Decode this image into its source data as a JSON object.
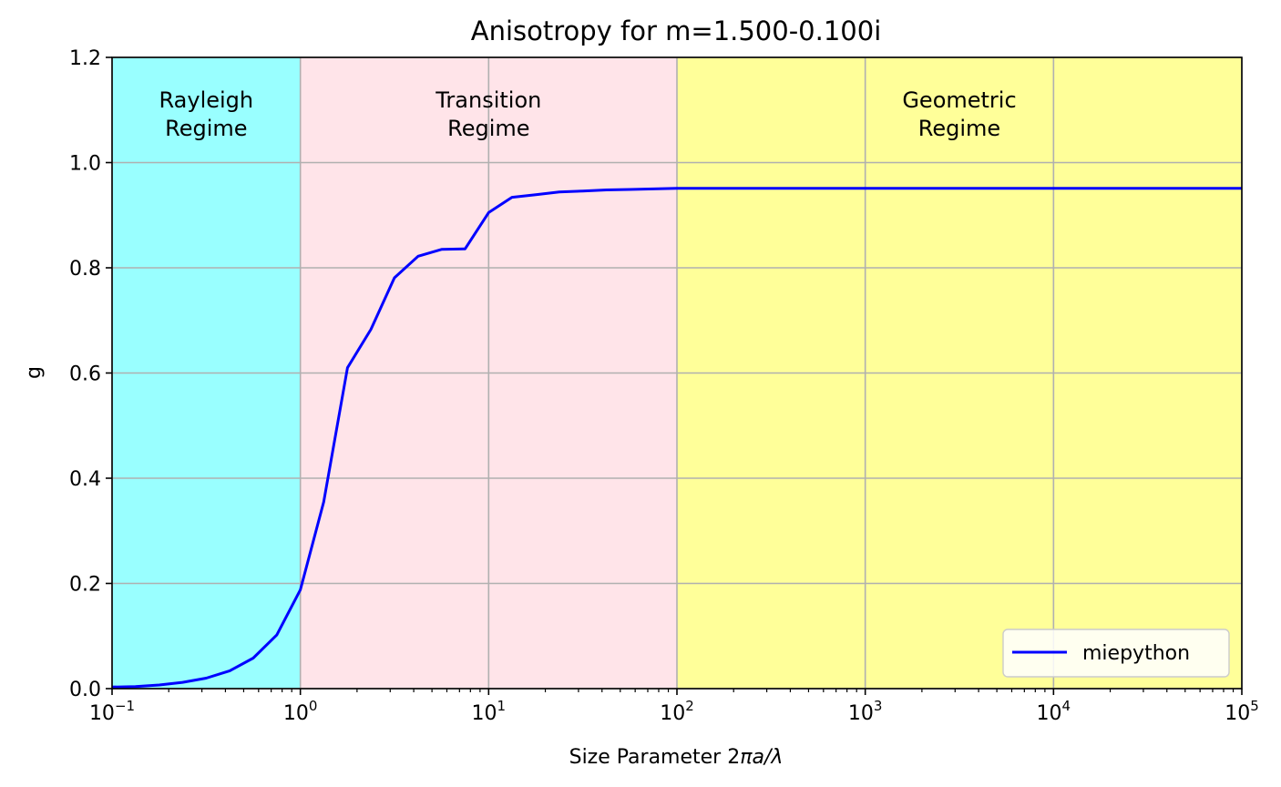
{
  "chart_data": {
    "type": "line",
    "title": "Anisotropy for m=1.500-0.100i",
    "xlabel_prefix": "Size Parameter 2",
    "xlabel_math": "πa/λ",
    "ylabel": "g",
    "xscale": "log",
    "xlim": [
      0.1,
      100000
    ],
    "ylim": [
      0,
      1.2
    ],
    "grid": true,
    "legend_position": "lower right",
    "x_ticks": [
      {
        "base": "10",
        "exp": "−1"
      },
      {
        "base": "10",
        "exp": "0"
      },
      {
        "base": "10",
        "exp": "1"
      },
      {
        "base": "10",
        "exp": "2"
      },
      {
        "base": "10",
        "exp": "3"
      },
      {
        "base": "10",
        "exp": "4"
      },
      {
        "base": "10",
        "exp": "5"
      }
    ],
    "y_ticks": [
      "0.0",
      "0.2",
      "0.4",
      "0.6",
      "0.8",
      "1.0",
      "1.2"
    ],
    "regions": [
      {
        "name": "rayleigh",
        "line1": "Rayleigh",
        "line2": "Regime",
        "from": 0.1,
        "to": 1,
        "color": "#99ffff"
      },
      {
        "name": "transition",
        "line1": "Transition",
        "line2": "Regime",
        "from": 1,
        "to": 100,
        "color": "#ffe4e9"
      },
      {
        "name": "geometric",
        "line1": "Geometric",
        "line2": "Regime",
        "from": 100,
        "to": 100000,
        "color": "#ffff99"
      }
    ],
    "series": [
      {
        "name": "miepython",
        "color": "#0000ff",
        "x": [
          0.1,
          0.133,
          0.178,
          0.237,
          0.316,
          0.422,
          0.562,
          0.75,
          1.0,
          1.33,
          1.78,
          2.37,
          3.16,
          4.22,
          5.62,
          7.5,
          10.0,
          13.3,
          17.8,
          23.7,
          31.6,
          42.2,
          56.2,
          75.0,
          100,
          316,
          1000,
          3162,
          10000,
          31623,
          100000
        ],
        "y": [
          0.003,
          0.004,
          0.007,
          0.012,
          0.02,
          0.034,
          0.058,
          0.102,
          0.188,
          0.355,
          0.61,
          0.683,
          0.781,
          0.822,
          0.835,
          0.836,
          0.905,
          0.934,
          0.939,
          0.944,
          0.946,
          0.948,
          0.949,
          0.95,
          0.951,
          0.951,
          0.951,
          0.951,
          0.951,
          0.951,
          0.951
        ]
      }
    ]
  }
}
